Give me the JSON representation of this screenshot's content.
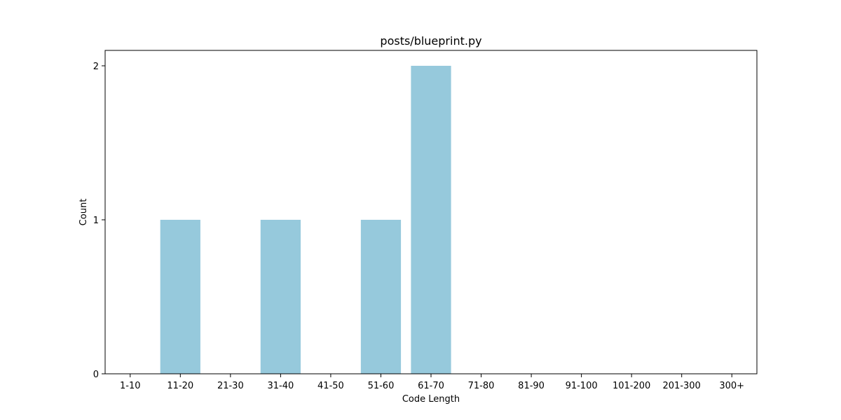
{
  "chart_data": {
    "type": "bar",
    "title": "posts/blueprint.py",
    "xlabel": "Code Length",
    "ylabel": "Count",
    "categories": [
      "1-10",
      "11-20",
      "21-30",
      "31-40",
      "41-50",
      "51-60",
      "61-70",
      "71-80",
      "81-90",
      "91-100",
      "101-200",
      "201-300",
      "300+"
    ],
    "values": [
      0,
      1,
      0,
      1,
      0,
      1,
      2,
      0,
      0,
      0,
      0,
      0,
      0
    ],
    "ylim": [
      0,
      2.1
    ],
    "yticks": [
      0,
      1,
      2
    ],
    "bar_color": "#96c9dc",
    "grid": false,
    "legend": "none"
  }
}
